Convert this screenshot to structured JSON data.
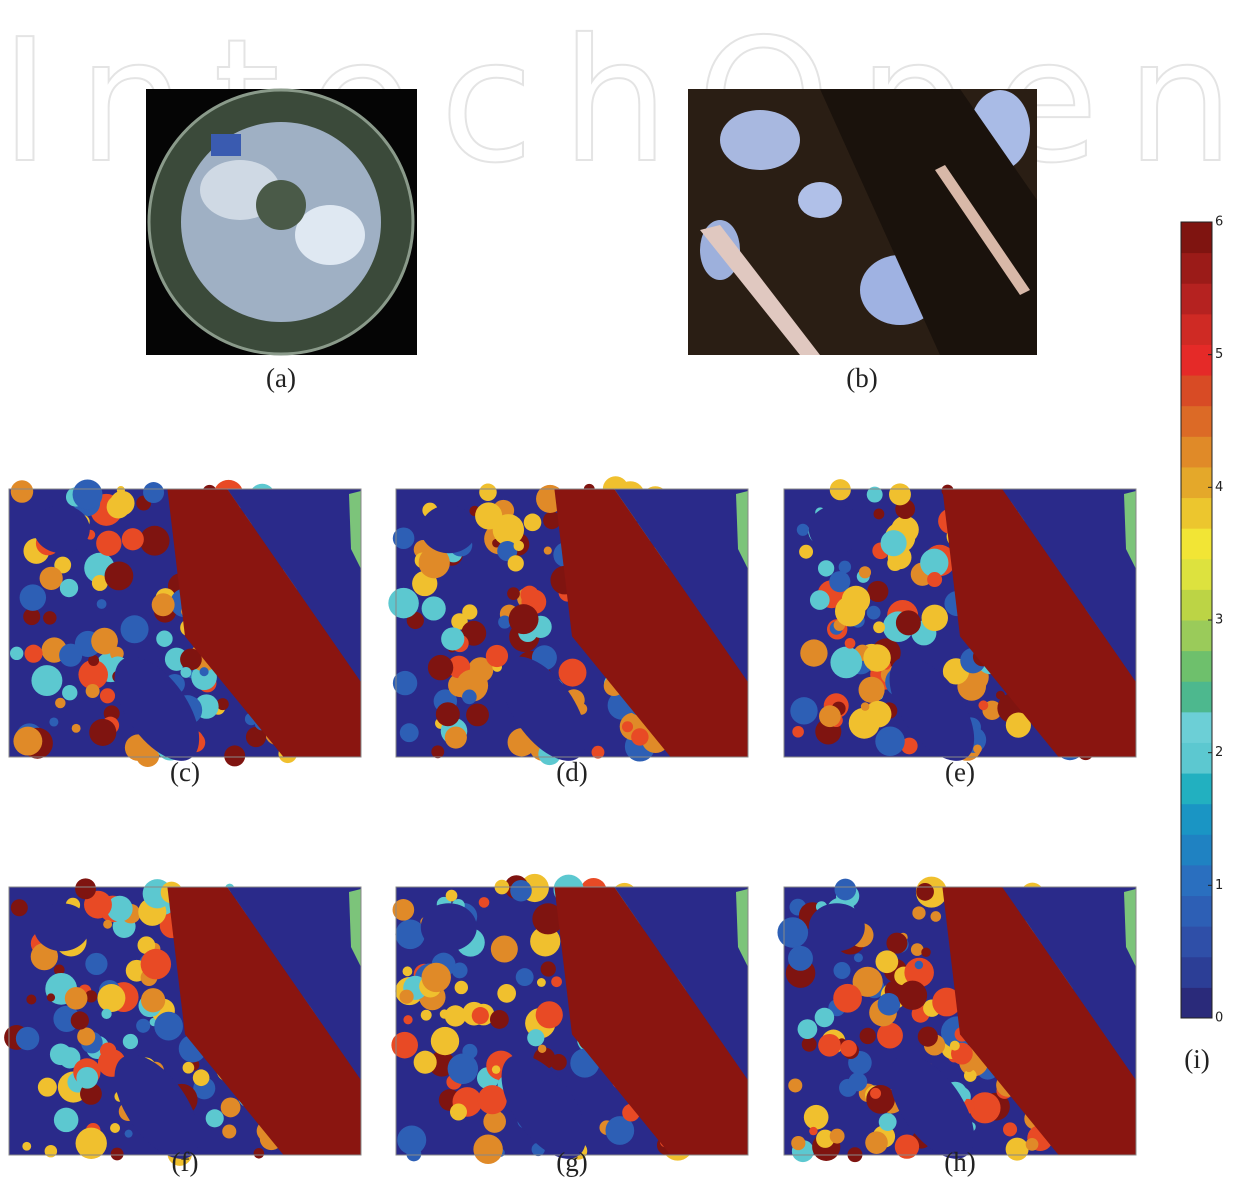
{
  "watermark": "IntechOpen",
  "panels": [
    {
      "label": "(a)"
    },
    {
      "label": "(b)"
    },
    {
      "label": "(c)"
    },
    {
      "label": "(d)"
    },
    {
      "label": "(e)"
    },
    {
      "label": "(f)"
    },
    {
      "label": "(g)"
    },
    {
      "label": "(h)"
    }
  ],
  "colorbar": {
    "label": "(i)",
    "lim": [
      0,
      6
    ],
    "ticks": [
      0,
      1,
      2,
      3,
      4,
      5,
      6
    ],
    "colors": [
      "#2a2a7a",
      "#2c3e96",
      "#2f4fa8",
      "#2d5fb5",
      "#2a6fbf",
      "#1f82c2",
      "#1a95c4",
      "#22b0c0",
      "#5cc8d0",
      "#6ccfd6",
      "#4db88e",
      "#6ec06c",
      "#9acb5a",
      "#bcd445",
      "#dde23e",
      "#f2e535",
      "#ecc62e",
      "#e4a82a",
      "#e08a28",
      "#dc6a26",
      "#d84b25",
      "#e52a28",
      "#cf2a24",
      "#b52220",
      "#9b1b18",
      "#7f1410"
    ]
  }
}
